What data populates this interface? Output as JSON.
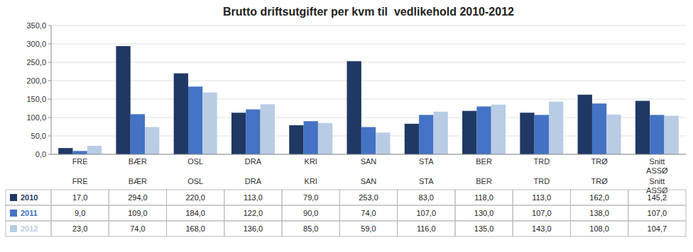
{
  "chart_data": {
    "type": "bar",
    "title": "Brutto driftsutgifter per kvm til  vedlikehold 2010-2012",
    "categories": [
      "FRE",
      "BÆR",
      "OSL",
      "DRA",
      "KRI",
      "SAN",
      "STA",
      "BER",
      "TRD",
      "TRØ",
      "Snitt\nASSØ"
    ],
    "series": [
      {
        "name": "2010",
        "color": "#1F3864",
        "values": [
          17.0,
          294.0,
          220.0,
          113.0,
          79.0,
          253.0,
          83.0,
          118.0,
          113.0,
          162.0,
          145.2
        ],
        "value_labels": [
          "17,0",
          "294,0",
          "220,0",
          "113,0",
          "79,0",
          "253,0",
          "83,0",
          "118,0",
          "113,0",
          "162,0",
          "145,2"
        ]
      },
      {
        "name": "2011",
        "color": "#4472C4",
        "values": [
          9.0,
          109.0,
          184.0,
          122.0,
          90.0,
          74.0,
          107.0,
          130.0,
          107.0,
          138.0,
          107.0
        ],
        "value_labels": [
          "9,0",
          "109,0",
          "184,0",
          "122,0",
          "90,0",
          "74,0",
          "107,0",
          "130,0",
          "107,0",
          "138,0",
          "107,0"
        ]
      },
      {
        "name": "2012",
        "color": "#B8CCE4",
        "values": [
          23.0,
          74.0,
          168.0,
          136.0,
          85.0,
          59.0,
          116.0,
          135.0,
          143.0,
          108.0,
          104.7
        ],
        "value_labels": [
          "23,0",
          "74,0",
          "168,0",
          "136,0",
          "85,0",
          "59,0",
          "116,0",
          "135,0",
          "143,0",
          "108,0",
          "104,7"
        ]
      }
    ],
    "ylim": [
      0,
      350
    ],
    "yticks": [
      {
        "value": 0,
        "label": "0,0"
      },
      {
        "value": 50,
        "label": "50,0"
      },
      {
        "value": 100,
        "label": "100,0"
      },
      {
        "value": 150,
        "label": "150,0"
      },
      {
        "value": 200,
        "label": "200,0"
      },
      {
        "value": 250,
        "label": "250,0"
      },
      {
        "value": 300,
        "label": "300,0"
      },
      {
        "value": 350,
        "label": "350,0"
      }
    ],
    "grid": true
  }
}
